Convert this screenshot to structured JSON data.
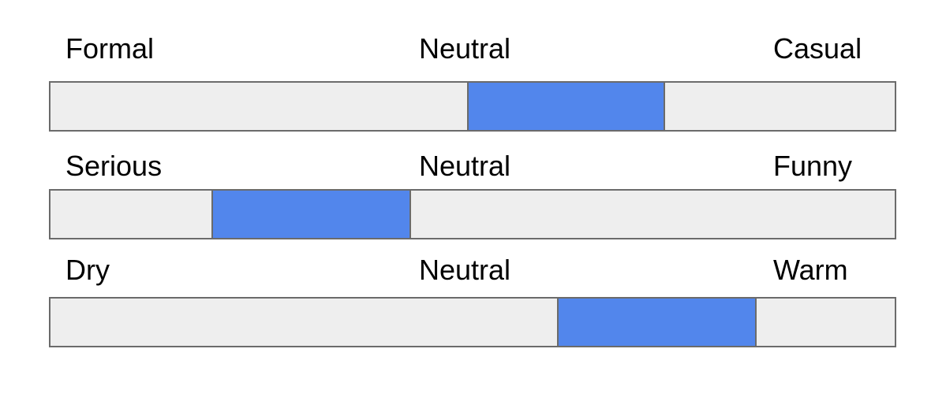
{
  "colors": {
    "track": "#eeeeee",
    "indicator": "#5286ec",
    "border": "#6b6b6b"
  },
  "scales": [
    {
      "left_label": "Formal",
      "middle_label": "Neutral",
      "right_label": "Casual",
      "range_start": 0.493,
      "range_end": 0.728
    },
    {
      "left_label": "Serious",
      "middle_label": "Neutral",
      "right_label": "Funny",
      "range_start": 0.191,
      "range_end": 0.427
    },
    {
      "left_label": "Dry",
      "middle_label": "Neutral",
      "right_label": "Warm",
      "range_start": 0.6,
      "range_end": 0.836
    }
  ]
}
